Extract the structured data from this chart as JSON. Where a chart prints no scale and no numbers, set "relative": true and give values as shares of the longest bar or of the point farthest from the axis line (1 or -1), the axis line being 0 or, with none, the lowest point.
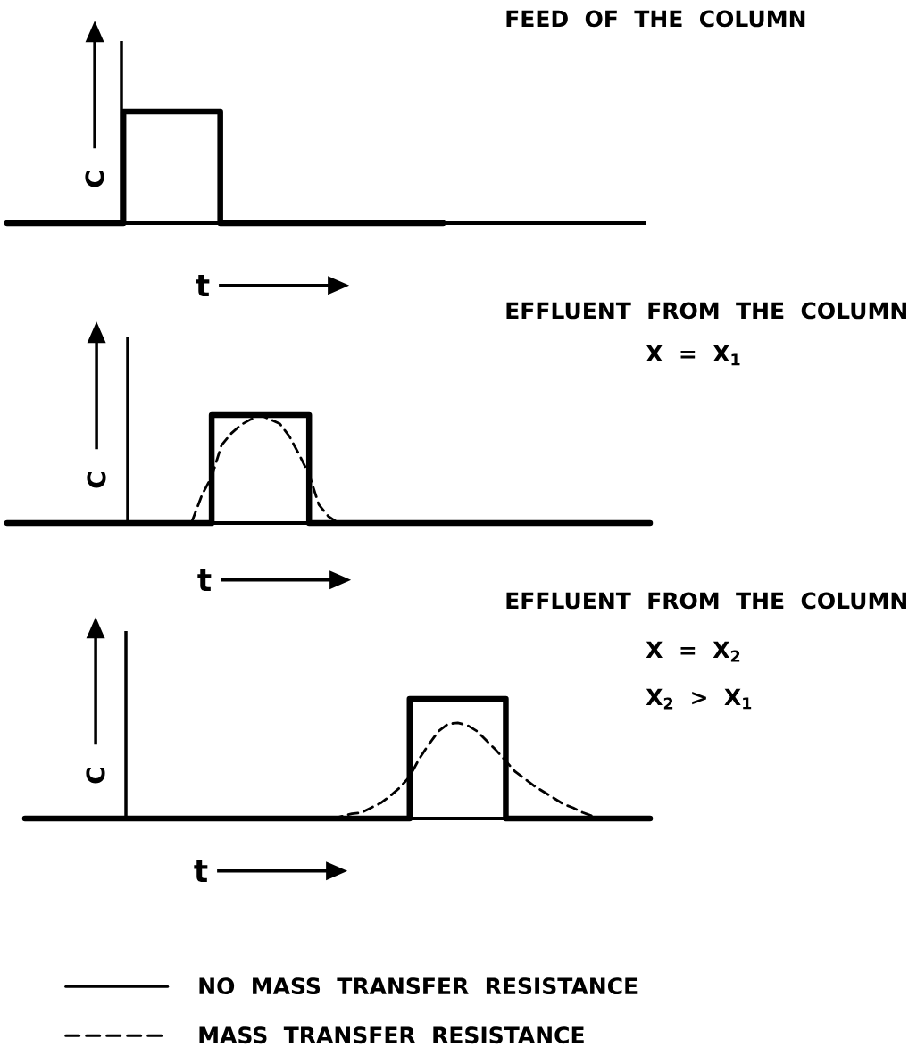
{
  "chart_data": [
    {
      "type": "step",
      "title": "FEED OF THE COLUMN",
      "xlabel": "t",
      "ylabel": "C",
      "relative": true,
      "categories": [
        null,
        null,
        null,
        null,
        null,
        null,
        null,
        null,
        null,
        null,
        null,
        null,
        null,
        null,
        null,
        null,
        null,
        null,
        null,
        null,
        null,
        null,
        null,
        null,
        null,
        null,
        null,
        null,
        null,
        null,
        null,
        null,
        null,
        null,
        null,
        null,
        null,
        null,
        null,
        null,
        null,
        null,
        null,
        null,
        null,
        null,
        null,
        null,
        null,
        null,
        null,
        null,
        null,
        null,
        null,
        null,
        null,
        null,
        null,
        null,
        null,
        null,
        null,
        null,
        null,
        null,
        null
      ],
      "series": [
        {
          "color": "#000000",
          "values": [
            0,
            0,
            0,
            0,
            0,
            0,
            0,
            0,
            0,
            0,
            0,
            0,
            1,
            1,
            1,
            1,
            1,
            1,
            1,
            1,
            1,
            1,
            0,
            0,
            0,
            0,
            0,
            0,
            0,
            0,
            0,
            0,
            0,
            0,
            0,
            0,
            0,
            0,
            0,
            0,
            0,
            0,
            0,
            0,
            0,
            0,
            null,
            null,
            null,
            null,
            null,
            null,
            null,
            null,
            null,
            null,
            null,
            null,
            null,
            null,
            null,
            null,
            null,
            null,
            null,
            null,
            null
          ]
        }
      ]
    },
    {
      "type": "step",
      "title": "EFFLUENT FROM THE COLUMN",
      "xlabel": "t",
      "ylabel": "C",
      "relative": true,
      "annotations": [
        "X = X$_{1}$"
      ],
      "categories": [
        null,
        null,
        null,
        null,
        null,
        null,
        null,
        null,
        null,
        null,
        null,
        null,
        null,
        null,
        null,
        null,
        null,
        null,
        null,
        null,
        null,
        null,
        null,
        null,
        null,
        null,
        null,
        null,
        null,
        null,
        null,
        null,
        null,
        null,
        null,
        null,
        null,
        null,
        null,
        null,
        null,
        null,
        null,
        null,
        null,
        null,
        null,
        null,
        null,
        null,
        null,
        null,
        null,
        null,
        null,
        null,
        null,
        null,
        null,
        null,
        null,
        null,
        null,
        null,
        null,
        null,
        null
      ],
      "series": [
        {
          "color": "#000000",
          "values": [
            0,
            0,
            0,
            0,
            0,
            0,
            0,
            0,
            0,
            0,
            0,
            0,
            0,
            0,
            0,
            0,
            0,
            0,
            0,
            0,
            0,
            1,
            1,
            1,
            1,
            1,
            1,
            1,
            1,
            1,
            1,
            0,
            0,
            0,
            0,
            0,
            0,
            0,
            0,
            0,
            0,
            0,
            0,
            0,
            0,
            0,
            0,
            0,
            0,
            0,
            0,
            0,
            0,
            0,
            0,
            0,
            0,
            0,
            0,
            0,
            0,
            0,
            0,
            0,
            0,
            0,
            0
          ]
        },
        {
          "type": "line",
          "line_style": "dashed",
          "color": "#000000",
          "values": [
            null,
            null,
            null,
            null,
            null,
            null,
            null,
            null,
            null,
            null,
            null,
            null,
            null,
            null,
            null,
            null,
            null,
            null,
            null,
            0.02,
            0.26,
            0.43,
            0.72,
            0.83,
            0.91,
            0.96,
            1.0,
            0.96,
            0.92,
            0.8,
            0.63,
            0.45,
            0.17,
            0.06,
            0,
            null,
            null,
            null,
            null,
            null,
            null,
            null,
            null,
            null,
            null,
            null,
            null,
            null,
            null,
            null,
            null,
            null,
            null,
            null,
            null,
            null,
            null,
            null,
            null,
            null,
            null,
            null,
            null,
            null,
            null,
            null,
            null
          ]
        }
      ]
    },
    {
      "type": "step",
      "title": "EFFLUENT FROM THE COLUMN",
      "xlabel": "t",
      "ylabel": "C",
      "relative": true,
      "annotations": [
        "X = X$_{2}$",
        "X$_{2}$ > X$_{1}$"
      ],
      "legend": "bottom",
      "categories": [
        null,
        null,
        null,
        null,
        null,
        null,
        null,
        null,
        null,
        null,
        null,
        null,
        null,
        null,
        null,
        null,
        null,
        null,
        null,
        null,
        null,
        null,
        null,
        null,
        null,
        null,
        null,
        null,
        null,
        null,
        null,
        null,
        null,
        null,
        null,
        null,
        null,
        null,
        null,
        null,
        null,
        null,
        null,
        null,
        null,
        null,
        null,
        null,
        null,
        null,
        null,
        null,
        null,
        null,
        null,
        null,
        null,
        null,
        null,
        null,
        null,
        null,
        null,
        null,
        null,
        null
      ],
      "series": [
        {
          "name": "NO MASS TRANSFER RESISTANCE",
          "color": "#000000",
          "values": [
            0,
            0,
            0,
            0,
            0,
            0,
            0,
            0,
            0,
            0,
            0,
            0,
            0,
            0,
            0,
            0,
            0,
            0,
            0,
            0,
            0,
            0,
            0,
            0,
            0,
            0,
            0,
            0,
            0,
            0,
            0,
            0,
            0,
            0,
            0,
            0,
            0,
            0,
            0,
            0,
            1,
            1,
            1,
            1,
            1,
            1,
            1,
            1,
            1,
            1,
            0,
            0,
            0,
            0,
            0,
            0,
            0,
            0,
            0,
            0,
            0,
            0,
            0,
            0,
            0,
            0
          ]
        },
        {
          "name": "MASS TRANSFER RESISTANCE",
          "type": "line",
          "line_style": "dashed",
          "color": "#000000",
          "values": [
            null,
            null,
            null,
            null,
            null,
            null,
            null,
            null,
            null,
            null,
            null,
            null,
            null,
            null,
            null,
            null,
            null,
            null,
            null,
            null,
            null,
            null,
            null,
            null,
            null,
            null,
            null,
            null,
            null,
            null,
            null,
            null,
            0,
            0.02,
            0.04,
            0.05,
            0.09,
            0.13,
            0.19,
            0.26,
            0.35,
            0.5,
            0.62,
            0.73,
            0.79,
            0.8,
            0.78,
            0.73,
            0.65,
            0.57,
            0.48,
            0.39,
            0.33,
            0.27,
            0.22,
            0.17,
            0.12,
            0.09,
            0.05,
            0.02,
            null,
            null,
            null,
            null,
            null,
            null
          ]
        }
      ]
    }
  ]
}
